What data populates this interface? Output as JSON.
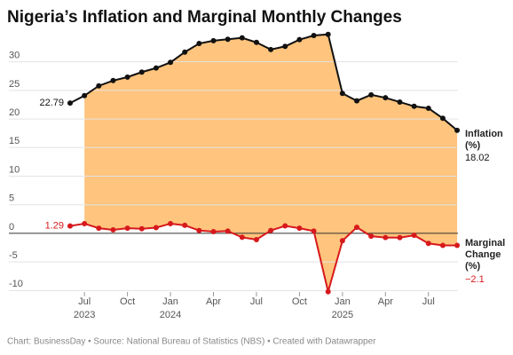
{
  "chart_data": {
    "type": "line",
    "title": "Nigeria’s Inflation and Marginal Monthly Changes",
    "source": "Chart: BusinessDay • Source: National Bureau of Statistics (NBS) • Created with Datawrapper",
    "categories": [
      null,
      "Jul",
      null,
      null,
      "Oct",
      null,
      null,
      "Jan",
      null,
      null,
      "Apr",
      null,
      null,
      "Jul",
      null,
      null,
      "Oct",
      null,
      null,
      "Jan",
      null,
      null,
      "Apr",
      null,
      null,
      "Jul",
      null,
      null
    ],
    "category_years": [
      null,
      "2023",
      null,
      null,
      null,
      null,
      null,
      "2024",
      null,
      null,
      null,
      null,
      null,
      null,
      null,
      null,
      null,
      null,
      null,
      "2025",
      null,
      null,
      null,
      null,
      null,
      null,
      null,
      null
    ],
    "series": [
      {
        "name": "Inflation (%)",
        "color": "#111111",
        "values": [
          22.79,
          24.08,
          25.8,
          26.72,
          27.33,
          28.2,
          28.92,
          29.9,
          31.7,
          33.2,
          33.69,
          33.95,
          34.19,
          33.4,
          32.15,
          32.7,
          33.88,
          34.6,
          34.8,
          24.48,
          23.18,
          24.23,
          23.71,
          22.97,
          22.22,
          21.88,
          20.12,
          18.02
        ],
        "value_labels": [
          "22.79",
          null,
          null,
          null,
          null,
          null,
          null,
          null,
          null,
          null,
          null,
          null,
          null,
          null,
          null,
          null,
          null,
          null,
          null,
          null,
          null,
          null,
          null,
          null,
          null,
          null,
          null,
          "18.02"
        ]
      },
      {
        "name": "Marginal Change (%)",
        "color": "#d7191c",
        "values": [
          1.29,
          1.7,
          0.9,
          0.6,
          0.9,
          0.8,
          1.0,
          1.7,
          1.4,
          0.5,
          0.3,
          0.4,
          -0.7,
          -1.1,
          0.5,
          1.3,
          0.9,
          0.4,
          -10.2,
          -1.3,
          1.05,
          -0.5,
          -0.74,
          -0.75,
          -0.34,
          -1.76,
          -2.1,
          -2.1
        ],
        "value_labels": [
          "1.29",
          null,
          null,
          null,
          null,
          null,
          null,
          null,
          null,
          null,
          null,
          null,
          null,
          null,
          null,
          null,
          null,
          null,
          null,
          null,
          null,
          null,
          null,
          null,
          null,
          null,
          null,
          "−2.1"
        ]
      }
    ],
    "fill_color": "#ffc47d",
    "ylim": [
      -11.5,
      31.5
    ],
    "yticks": [
      -10,
      -5,
      0,
      5,
      10,
      15,
      20,
      25,
      30
    ],
    "grid": true
  }
}
